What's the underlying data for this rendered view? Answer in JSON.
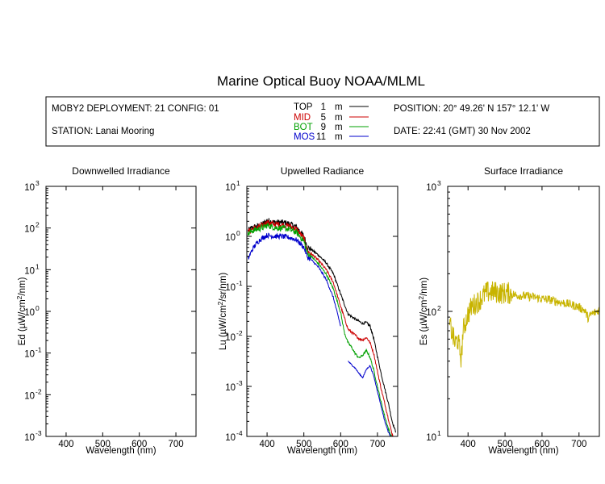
{
  "title": "Marine Optical Buoy NOAA/MLML",
  "info": {
    "deployment": "MOBY2 DEPLOYMENT: 21 CONFIG: 01",
    "station": "STATION: Lanai Mooring",
    "position": "POSITION: 20° 49.26' N   157° 12.1' W",
    "date": "DATE: 22:41 (GMT) 30 Nov 2002",
    "depths": [
      {
        "name": "TOP",
        "depth": "1",
        "unit": "m",
        "color": "#000000"
      },
      {
        "name": "MID",
        "depth": "5",
        "unit": "m",
        "color": "#cc0000"
      },
      {
        "name": "BOT",
        "depth": "9",
        "unit": "m",
        "color": "#00a000"
      },
      {
        "name": "MOS",
        "depth": "11",
        "unit": "m",
        "color": "#0000cc"
      }
    ]
  },
  "chart_data": [
    {
      "type": "line",
      "title": "Downwelled Irradiance",
      "xlabel": "Wavelength (nm)",
      "ylabel_main": "Ed  (µW/cm",
      "ylabel_sup": "2",
      "ylabel_end": "/nm)",
      "xlim": [
        345,
        755
      ],
      "ylim_log10": [
        -3,
        3
      ],
      "xticks": [
        400,
        500,
        600,
        700
      ],
      "yticks": [
        {
          "base": "10",
          "exp": "3"
        },
        {
          "base": "10",
          "exp": "2"
        },
        {
          "base": "10",
          "exp": "1"
        },
        {
          "base": "10",
          "exp": "0"
        },
        {
          "base": "10",
          "exp": "-1"
        },
        {
          "base": "10",
          "exp": "-2"
        },
        {
          "base": "10",
          "exp": "-3"
        }
      ],
      "series": []
    },
    {
      "type": "line",
      "title": "Upwelled Radiance",
      "xlabel": "Wavelength (nm)",
      "ylabel_main": "Lu  (µW/cm",
      "ylabel_sup": "2",
      "ylabel_end": "/sr/nm)",
      "xlim": [
        345,
        755
      ],
      "ylim_log10": [
        -4,
        1
      ],
      "xticks": [
        400,
        500,
        600,
        700
      ],
      "yticks": [
        {
          "base": "10",
          "exp": "1"
        },
        {
          "base": "10",
          "exp": "0"
        },
        {
          "base": "10",
          "exp": "-1"
        },
        {
          "base": "10",
          "exp": "-2"
        },
        {
          "base": "10",
          "exp": "-3"
        },
        {
          "base": "10",
          "exp": "-4"
        }
      ],
      "series": [
        {
          "color": "#000000",
          "noise": 0.06,
          "x": [
            348,
            360,
            375,
            390,
            400,
            420,
            440,
            460,
            480,
            500,
            510,
            520,
            540,
            560,
            580,
            600,
            620,
            640,
            650,
            660,
            670,
            680,
            690,
            700,
            710,
            720,
            730,
            740,
            750
          ],
          "y": [
            1.3,
            1.5,
            1.6,
            1.8,
            2.1,
            1.9,
            1.9,
            1.8,
            1.55,
            1.0,
            0.6,
            0.55,
            0.42,
            0.3,
            0.18,
            0.07,
            0.028,
            0.022,
            0.02,
            0.018,
            0.019,
            0.016,
            0.009,
            0.004,
            0.0018,
            0.0009,
            0.00045,
            0.0002,
            0.00012
          ]
        },
        {
          "color": "#cc0000",
          "noise": 0.06,
          "x": [
            348,
            360,
            375,
            390,
            400,
            420,
            440,
            460,
            480,
            500,
            510,
            520,
            540,
            560,
            580,
            600,
            620,
            630,
            640,
            650,
            660,
            670,
            680,
            690,
            700,
            710,
            720,
            730,
            740,
            750
          ],
          "y": [
            1.2,
            1.4,
            1.5,
            1.7,
            1.9,
            1.75,
            1.7,
            1.6,
            1.4,
            0.9,
            0.5,
            0.45,
            0.33,
            0.22,
            0.12,
            0.04,
            0.014,
            0.012,
            0.0105,
            0.009,
            0.0085,
            0.0095,
            0.0075,
            0.0045,
            0.002,
            0.0009,
            0.00045,
            0.00022,
            0.00011,
            8e-05
          ]
        },
        {
          "color": "#00a000",
          "noise": 0.06,
          "x": [
            348,
            360,
            375,
            390,
            400,
            420,
            440,
            460,
            480,
            500,
            510,
            520,
            540,
            560,
            580,
            600,
            610,
            620,
            630,
            640,
            650,
            660,
            670,
            680,
            690,
            700,
            710,
            720,
            730,
            740,
            750
          ],
          "y": [
            1.1,
            1.3,
            1.4,
            1.5,
            1.65,
            1.5,
            1.45,
            1.4,
            1.2,
            0.8,
            0.45,
            0.4,
            0.28,
            0.18,
            0.09,
            0.03,
            0.012,
            0.0075,
            0.006,
            0.0045,
            0.0037,
            0.0042,
            0.0052,
            0.0038,
            0.0021,
            0.001,
            0.00048,
            0.00025,
            0.00014,
            9e-05,
            7e-05
          ]
        },
        {
          "color": "#0000cc",
          "noise": 0.05,
          "x": [
            348,
            352,
            360,
            370,
            380,
            390,
            400,
            420,
            440,
            460,
            480,
            500,
            510,
            520,
            540,
            560,
            580,
            600
          ],
          "y": [
            0.35,
            0.4,
            0.55,
            0.7,
            0.85,
            0.95,
            1.05,
            1.0,
            1.0,
            0.95,
            0.85,
            0.6,
            0.38,
            0.34,
            0.24,
            0.14,
            0.06,
            0.016
          ]
        },
        {
          "color": "#0000cc",
          "noise": 0.03,
          "x": [
            620,
            630,
            640,
            650,
            660,
            670,
            680,
            690,
            700,
            710,
            720,
            730,
            740,
            750
          ],
          "y": [
            0.0032,
            0.0027,
            0.0023,
            0.0018,
            0.0015,
            0.0022,
            0.0026,
            0.0016,
            0.0008,
            0.0004,
            0.0002,
            0.00012,
            9e-05,
            8e-05
          ]
        }
      ]
    },
    {
      "type": "line",
      "title": "Surface Irradiance",
      "xlabel": "Wavelength (nm)",
      "ylabel_main": "Es  (µW/cm",
      "ylabel_sup": "2",
      "ylabel_end": "/nm)",
      "xlim": [
        345,
        755
      ],
      "ylim_log10": [
        1,
        3
      ],
      "xticks": [
        400,
        500,
        600,
        700
      ],
      "yticks": [
        {
          "base": "10",
          "exp": "3"
        },
        {
          "base": "10",
          "exp": "2"
        },
        {
          "base": "10",
          "exp": "1"
        }
      ],
      "series": [
        {
          "color": "#c8b400",
          "noise": 0.09,
          "x": [
            350,
            358,
            365,
            372,
            378,
            382,
            386,
            392,
            400,
            410,
            420,
            430,
            440,
            450,
            470,
            490,
            510,
            530,
            550,
            580,
            600,
            620,
            650,
            680,
            700,
            715,
            725,
            735,
            745,
            755
          ],
          "y": [
            80,
            65,
            55,
            60,
            48,
            42,
            68,
            80,
            95,
            110,
            115,
            122,
            132,
            142,
            143,
            140,
            140,
            135,
            133,
            130,
            126,
            124,
            118,
            113,
            108,
            102,
            88,
            96,
            98,
            104
          ]
        }
      ]
    }
  ]
}
